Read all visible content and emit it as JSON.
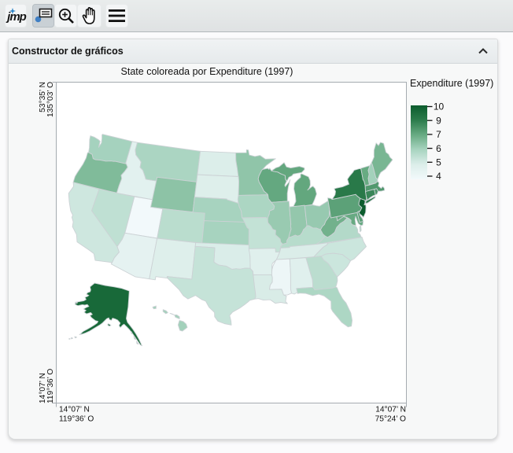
{
  "toolbar": {
    "jmp_label": "jmp",
    "buttons": [
      {
        "id": "jmp-home"
      },
      {
        "id": "annotate",
        "selected": true
      },
      {
        "id": "magnifier"
      },
      {
        "id": "grabber"
      },
      {
        "id": "menu"
      }
    ]
  },
  "panel": {
    "title": "Constructor de gráficos"
  },
  "chart_data": {
    "type": "choropleth",
    "title": "State coloreada por Expenditure (1997)",
    "map_variable": "State",
    "color_variable": "Expenditure (1997)",
    "legend": {
      "title": "Expenditure (1997)",
      "tick_labels": [
        "10",
        "9",
        "7",
        "6",
        "5",
        "4"
      ]
    },
    "color_scale": {
      "anchors": [
        4,
        5,
        6,
        7,
        9,
        10
      ],
      "colors": [
        "#f2f9fb",
        "#dceeea",
        "#a8d4c0",
        "#68ab83",
        "#2c7c4c",
        "#0b5c2d"
      ]
    },
    "axis_corner_labels": {
      "top_left": [
        "53°35’ N",
        "135°03’ O"
      ],
      "bottom_left": [
        "14°07’ N",
        "119°36’ O"
      ],
      "bottom_right": [
        "14°07’ N",
        "75°24’ O"
      ]
    },
    "states": [
      {
        "id": "AL",
        "name": "Alabama",
        "value": 4.82
      },
      {
        "id": "AK",
        "name": "Alaska",
        "value": 9.6
      },
      {
        "id": "AZ",
        "name": "Arizona",
        "value": 4.6
      },
      {
        "id": "AR",
        "name": "Arkansas",
        "value": 4.84
      },
      {
        "id": "CA",
        "name": "California",
        "value": 5.27
      },
      {
        "id": "CO",
        "name": "Colorado",
        "value": 5.66
      },
      {
        "id": "CT",
        "name": "Connecticut",
        "value": 8.58
      },
      {
        "id": "DE",
        "name": "Delaware",
        "value": 7.42
      },
      {
        "id": "FL",
        "name": "Florida",
        "value": 5.9
      },
      {
        "id": "GA",
        "name": "Georgia",
        "value": 5.64
      },
      {
        "id": "HI",
        "name": "Hawaii",
        "value": 6.08
      },
      {
        "id": "ID",
        "name": "Idaho",
        "value": 4.72
      },
      {
        "id": "IL",
        "name": "Illinois",
        "value": 6.24
      },
      {
        "id": "IN",
        "name": "Indiana",
        "value": 6.32
      },
      {
        "id": "IA",
        "name": "Iowa",
        "value": 5.92
      },
      {
        "id": "KS",
        "name": "Kansas",
        "value": 6.02
      },
      {
        "id": "KY",
        "name": "Kentucky",
        "value": 5.71
      },
      {
        "id": "LA",
        "name": "Louisiana",
        "value": 5.06
      },
      {
        "id": "ME",
        "name": "Maine",
        "value": 6.74
      },
      {
        "id": "MD",
        "name": "Maryland",
        "value": 7.03
      },
      {
        "id": "MA",
        "name": "Massachusetts",
        "value": 7.78
      },
      {
        "id": "MI",
        "name": "Michigan",
        "value": 7.17
      },
      {
        "id": "MN",
        "name": "Minnesota",
        "value": 6.37
      },
      {
        "id": "MS",
        "name": "Mississippi",
        "value": 4.25
      },
      {
        "id": "MO",
        "name": "Missouri",
        "value": 5.48
      },
      {
        "id": "MT",
        "name": "Montana",
        "value": 5.95
      },
      {
        "id": "NE",
        "name": "Nebraska",
        "value": 6.02
      },
      {
        "id": "NV",
        "name": "Nevada",
        "value": 5.55
      },
      {
        "id": "NH",
        "name": "New Hampshire",
        "value": 6.08
      },
      {
        "id": "NJ",
        "name": "New Jersey",
        "value": 9.97
      },
      {
        "id": "NM",
        "name": "New Mexico",
        "value": 4.92
      },
      {
        "id": "NY",
        "name": "New York",
        "value": 9.09
      },
      {
        "id": "NC",
        "name": "North Carolina",
        "value": 5.32
      },
      {
        "id": "ND",
        "name": "North Dakota",
        "value": 4.98
      },
      {
        "id": "OH",
        "name": "Ohio",
        "value": 6.27
      },
      {
        "id": "OK",
        "name": "Oklahoma",
        "value": 5.03
      },
      {
        "id": "OR",
        "name": "Oregon",
        "value": 6.62
      },
      {
        "id": "PA",
        "name": "Pennsylvania",
        "value": 7.41
      },
      {
        "id": "RI",
        "name": "Rhode Island",
        "value": 8.0
      },
      {
        "id": "SC",
        "name": "South Carolina",
        "value": 5.32
      },
      {
        "id": "SD",
        "name": "South Dakota",
        "value": 4.93
      },
      {
        "id": "TN",
        "name": "Tennessee",
        "value": 5.02
      },
      {
        "id": "TX",
        "name": "Texas",
        "value": 5.44
      },
      {
        "id": "UT",
        "name": "Utah",
        "value": 3.87
      },
      {
        "id": "VT",
        "name": "Vermont",
        "value": 7.02
      },
      {
        "id": "VA",
        "name": "Virginia",
        "value": 5.79
      },
      {
        "id": "WA",
        "name": "Washington",
        "value": 6.04
      },
      {
        "id": "WV",
        "name": "West Virginia",
        "value": 6.85
      },
      {
        "id": "WI",
        "name": "Wisconsin",
        "value": 7.12
      },
      {
        "id": "WY",
        "name": "Wyoming",
        "value": 6.42
      }
    ]
  }
}
